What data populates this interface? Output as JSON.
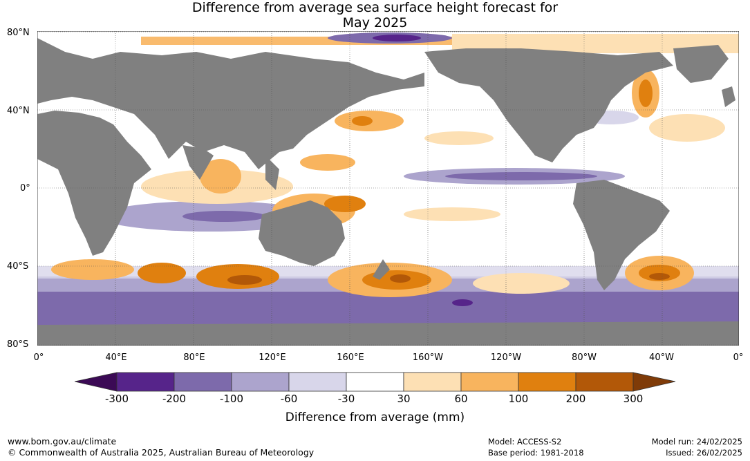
{
  "title": {
    "line1": "Difference from average sea surface height forecast for",
    "line2": "May 2025"
  },
  "map": {
    "lat_labels": [
      "80°N",
      "40°N",
      "0°",
      "40°S",
      "80°S"
    ],
    "lon_labels": [
      "0°",
      "40°E",
      "80°E",
      "120°E",
      "160°E",
      "160°W",
      "120°W",
      "80°W",
      "40°W",
      "0°"
    ],
    "land_color": "#808080",
    "grid_style": "dotted"
  },
  "colorbar": {
    "title": "Difference from average (mm)",
    "tick_labels": [
      "-300",
      "-200",
      "-100",
      "-60",
      "-30",
      "30",
      "60",
      "100",
      "200",
      "300"
    ],
    "colors": [
      "#3b0a55",
      "#56248a",
      "#7d6aab",
      "#aca4cd",
      "#d8d6ea",
      "#ffffff",
      "#fde0b4",
      "#f8b45e",
      "#e0800f",
      "#b25808",
      "#7f3b08"
    ]
  },
  "footer": {
    "website": "www.bom.gov.au/climate",
    "copyright": "© Commonwealth of Australia 2025, Australian Bureau of Meteorology",
    "model": "Model: ACCESS-S2",
    "base_period": "Base period: 1981-2018",
    "model_run": "Model run: 24/02/2025",
    "issued": "Issued: 26/02/2025"
  }
}
